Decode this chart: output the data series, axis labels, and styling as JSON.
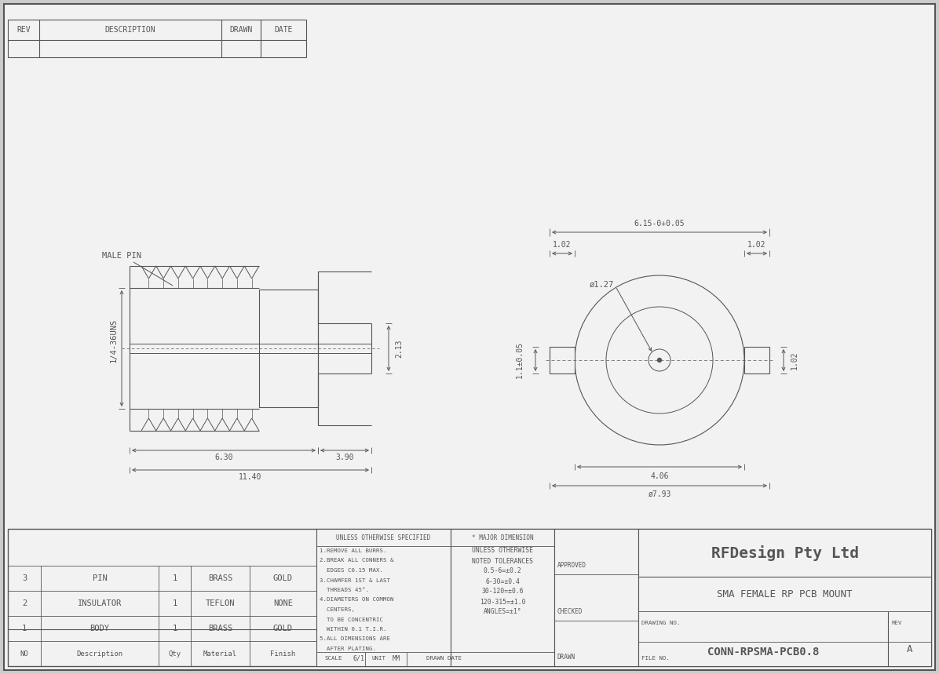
{
  "bg_color": "#f0f0f0",
  "line_color": "#555555",
  "dim_color": "#555555",
  "company": "RFDesign Pty Ltd",
  "description": "SMA FEMALE RP PCB MOUNT",
  "drawing_no": "CONN-RPSMA-PCB0.8",
  "rev": "A",
  "scale": "6/1",
  "unit": "MM",
  "bom_rows": [
    [
      "3",
      "PIN",
      "1",
      "BRASS",
      "GOLD"
    ],
    [
      "2",
      "INSULATOR",
      "1",
      "TEFLON",
      "NONE"
    ],
    [
      "1",
      "BODY",
      "1",
      "BRASS",
      "GOLD"
    ],
    [
      "NO",
      "Description",
      "Qty",
      "Material",
      "Finish"
    ]
  ],
  "tolerances_title": "UNLESS OTHERWISE SPECIFIED",
  "tolerances": [
    "1.REMOVE ALL BURRS.",
    "2.BREAK ALL CONNERS &",
    "  EDGES C0.15 MAX.",
    "3.CHAMFER 1ST & LAST",
    "  THREADS 45°.",
    "4.DIAMETERS ON COMMON",
    "  CENTERS,",
    "  TO BE CONCENTRIC",
    "  WITHIN 0.1 T.I.R.",
    "5.ALL DIMENSIONS ARE",
    "  AFTER PLATING."
  ],
  "major_dim_title": "* MAJOR DIMENSION",
  "major_dims": [
    "UNLESS OTHERWISE",
    "NOTED TOLERANCES",
    "0.5-6=±0.2",
    "6-30=±0.4",
    "30-120=±0.6",
    "120-315=±1.0",
    "ANGLES=±1°"
  ],
  "approved_label": "APPROVED",
  "checked_label": "CHECKED",
  "drawn_label": "DRAWN",
  "drawn_date_label": "DRAWN DATE",
  "file_no_label": "FILE NO."
}
